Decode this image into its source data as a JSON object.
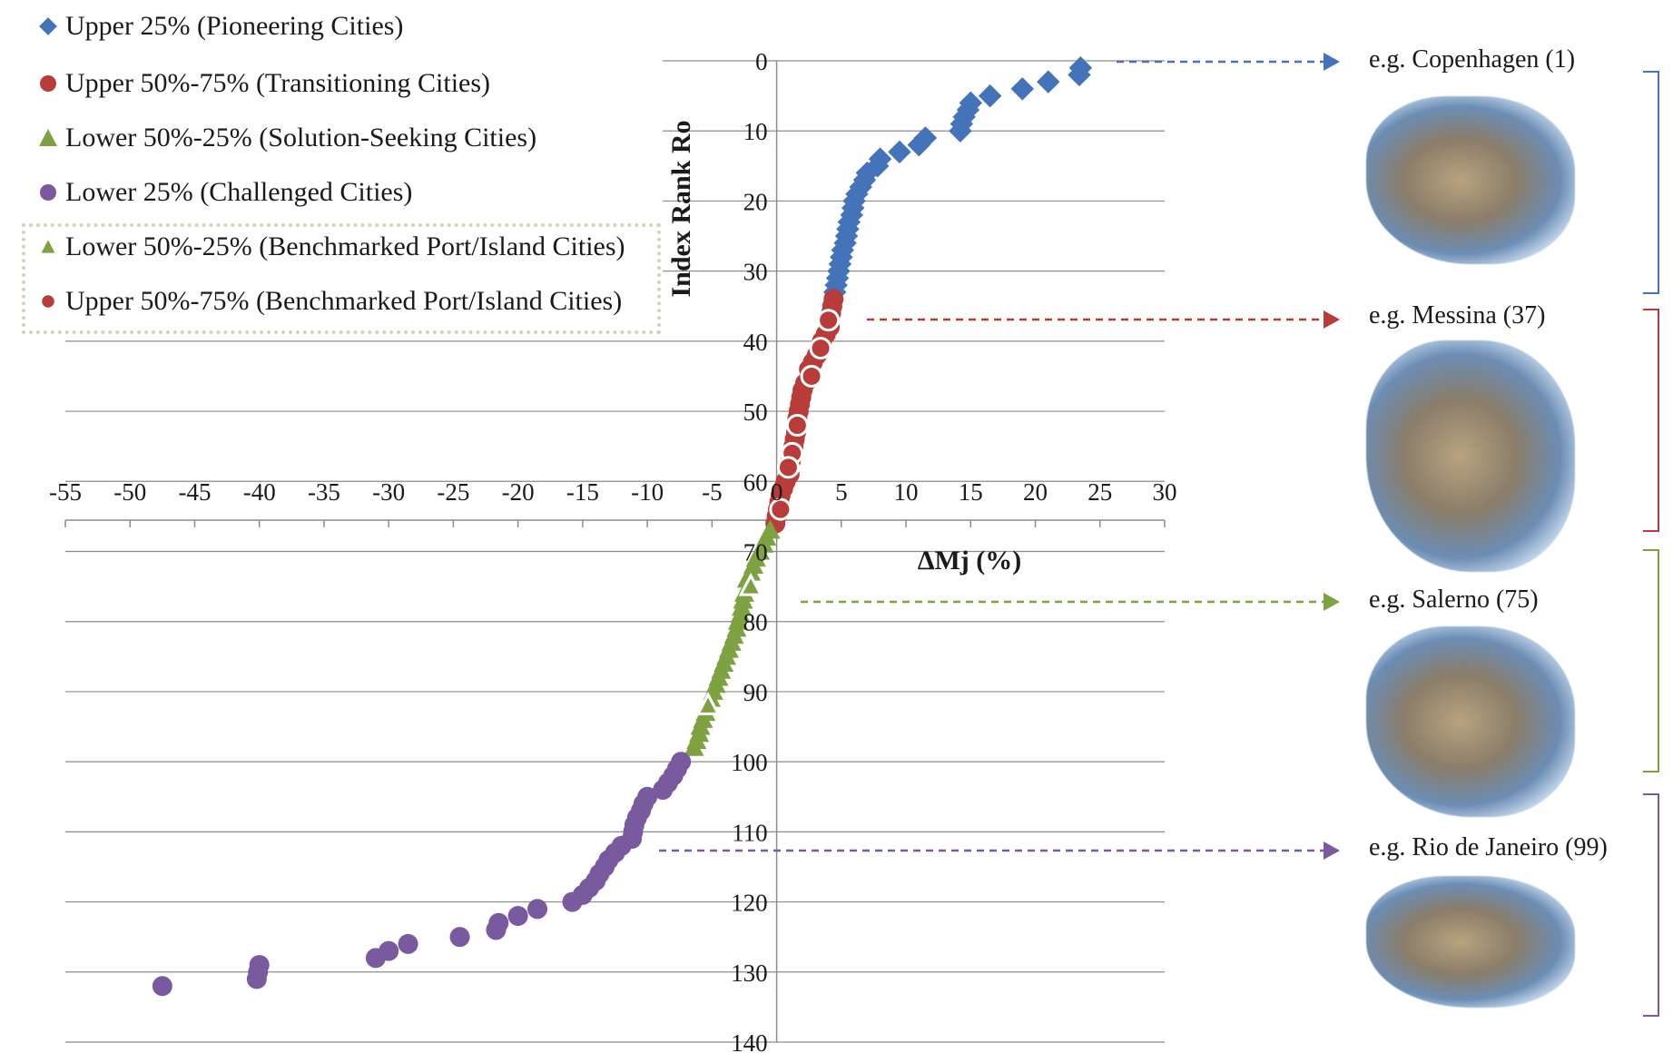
{
  "legend": {
    "upper25": "Upper 25% (Pioneering Cities)",
    "upper5075": "Upper 50%-75% (Transitioning Cities)",
    "lower5025": "Lower 50%-25% (Solution-Seeking Cities)",
    "lower25": "Lower 25% (Challenged Cities)",
    "bench_lower": "Lower 50%-25% (Benchmarked Port/Island Cities)",
    "bench_upper": "Upper 50%-75% (Benchmarked Port/Island Cities)"
  },
  "colors": {
    "blue": "#4473b9",
    "red": "#b73c3a",
    "green": "#7ea242",
    "purple": "#7a5a9e",
    "grid": "#8c8c8c"
  },
  "examples": [
    {
      "label": "e.g. Copenhagen (1)",
      "rank": 1,
      "color": "#4473b9",
      "icon": "copenhagen-photo-map"
    },
    {
      "label": "e.g. Messina (37)",
      "rank": 37,
      "color": "#b73c3a",
      "icon": "messina-photo-map"
    },
    {
      "label": "e.g. Salerno (75)",
      "rank": 75,
      "color": "#7ea242",
      "icon": "salerno-photo-map"
    },
    {
      "label": "e.g. Rio de Janeiro (99)",
      "rank": 99,
      "color": "#7a5a9e",
      "icon": "rio-photo-map"
    }
  ],
  "chart_data": {
    "type": "scatter",
    "title": "",
    "xlabel": "ΔMj (%)",
    "ylabel": "Index Rank Ro",
    "xlim": [
      -55,
      30
    ],
    "ylim": [
      140,
      0
    ],
    "y_reversed": true,
    "grid": "horizontal",
    "x_ticks": [
      "-55",
      "-50",
      "-45",
      "-40",
      "-35",
      "-30",
      "-25",
      "-20",
      "-15",
      "-10",
      "-5",
      "0",
      "5",
      "10",
      "15",
      "20",
      "25",
      "30"
    ],
    "y_ticks": [
      "0",
      "10",
      "20",
      "30",
      "40",
      "50",
      "60",
      "70",
      "80",
      "90",
      "100",
      "110",
      "120",
      "130",
      "140"
    ],
    "legend_position": "top-left",
    "series": [
      {
        "name": "Upper 25% (Pioneering Cities)",
        "marker": "diamond",
        "color": "#4473b9",
        "points": [
          [
            23.5,
            1
          ],
          [
            23.4,
            2
          ],
          [
            21.0,
            3
          ],
          [
            19.0,
            4
          ],
          [
            16.5,
            5
          ],
          [
            15.0,
            6
          ],
          [
            14.8,
            7
          ],
          [
            14.5,
            8
          ],
          [
            14.3,
            9
          ],
          [
            14.2,
            10
          ],
          [
            11.5,
            11
          ],
          [
            11.0,
            12
          ],
          [
            9.5,
            13
          ],
          [
            8.0,
            14
          ],
          [
            7.8,
            15
          ],
          [
            7.0,
            16
          ],
          [
            6.8,
            17
          ],
          [
            6.5,
            18
          ],
          [
            6.2,
            19
          ],
          [
            6.0,
            20
          ],
          [
            5.9,
            21
          ],
          [
            5.8,
            22
          ],
          [
            5.6,
            23
          ],
          [
            5.5,
            24
          ],
          [
            5.4,
            25
          ],
          [
            5.3,
            26
          ],
          [
            5.1,
            27
          ],
          [
            5.0,
            28
          ],
          [
            4.9,
            29
          ],
          [
            4.8,
            30
          ],
          [
            4.7,
            31
          ],
          [
            4.6,
            32
          ],
          [
            4.5,
            33
          ]
        ]
      },
      {
        "name": "Upper 50%-75% (Transitioning Cities)",
        "marker": "circle",
        "color": "#b73c3a",
        "points": [
          [
            4.4,
            34
          ],
          [
            4.3,
            35
          ],
          [
            4.2,
            36
          ],
          [
            4.1,
            38
          ],
          [
            3.8,
            39
          ],
          [
            3.5,
            40
          ],
          [
            3.1,
            42
          ],
          [
            2.8,
            43
          ],
          [
            2.5,
            44
          ],
          [
            2.2,
            46
          ],
          [
            2.0,
            47
          ],
          [
            1.9,
            48
          ],
          [
            1.8,
            49
          ],
          [
            1.7,
            50
          ],
          [
            1.6,
            51
          ],
          [
            1.5,
            53
          ],
          [
            1.4,
            54
          ],
          [
            1.3,
            55
          ],
          [
            1.1,
            57
          ],
          [
            1.0,
            59
          ],
          [
            0.7,
            60
          ],
          [
            0.5,
            61
          ],
          [
            0.3,
            62
          ],
          [
            0.2,
            63
          ],
          [
            0.1,
            64
          ],
          [
            0.0,
            65
          ],
          [
            -0.1,
            66
          ]
        ]
      },
      {
        "name": "Lower 50%-25% (Solution-Seeking Cities)",
        "marker": "triangle",
        "color": "#7ea242",
        "points": [
          [
            -0.5,
            67
          ],
          [
            -0.8,
            68
          ],
          [
            -1.0,
            69
          ],
          [
            -1.3,
            70
          ],
          [
            -1.6,
            71
          ],
          [
            -1.8,
            72
          ],
          [
            -2.0,
            73
          ],
          [
            -2.3,
            74
          ],
          [
            -2.5,
            76
          ],
          [
            -2.6,
            77
          ],
          [
            -2.7,
            78
          ],
          [
            -2.8,
            79
          ],
          [
            -3.0,
            80
          ],
          [
            -3.1,
            81
          ],
          [
            -3.3,
            82
          ],
          [
            -3.5,
            83
          ],
          [
            -3.7,
            84
          ],
          [
            -3.9,
            85
          ],
          [
            -4.1,
            86
          ],
          [
            -4.3,
            87
          ],
          [
            -4.5,
            88
          ],
          [
            -4.7,
            89
          ],
          [
            -4.9,
            90
          ],
          [
            -5.1,
            91
          ],
          [
            -5.5,
            93
          ],
          [
            -5.7,
            94
          ],
          [
            -5.9,
            95
          ],
          [
            -6.0,
            96
          ],
          [
            -6.2,
            97
          ],
          [
            -6.4,
            98
          ]
        ]
      },
      {
        "name": "Lower 25% (Challenged Cities)",
        "marker": "circle",
        "color": "#7a5a9e",
        "points": [
          [
            -7.4,
            100
          ],
          [
            -7.7,
            101
          ],
          [
            -8.0,
            102
          ],
          [
            -8.4,
            103
          ],
          [
            -8.8,
            104
          ],
          [
            -10.0,
            105
          ],
          [
            -10.3,
            106
          ],
          [
            -10.5,
            107
          ],
          [
            -10.8,
            108
          ],
          [
            -11.0,
            109
          ],
          [
            -11.1,
            110
          ],
          [
            -11.2,
            111
          ],
          [
            -12.0,
            112
          ],
          [
            -12.5,
            113
          ],
          [
            -13.0,
            114
          ],
          [
            -13.3,
            115
          ],
          [
            -13.7,
            116
          ],
          [
            -14.0,
            117
          ],
          [
            -14.5,
            118
          ],
          [
            -15.0,
            119
          ],
          [
            -15.8,
            120
          ],
          [
            -18.5,
            121
          ],
          [
            -20.0,
            122
          ],
          [
            -21.5,
            123
          ],
          [
            -21.7,
            124
          ],
          [
            -24.5,
            125
          ],
          [
            -28.5,
            126
          ],
          [
            -30.0,
            127
          ],
          [
            -31.0,
            128
          ],
          [
            -40.0,
            129
          ],
          [
            -40.1,
            130
          ],
          [
            -40.2,
            131
          ],
          [
            -47.5,
            132
          ]
        ]
      },
      {
        "name": "Lower 50%-25% (Benchmarked Port/Island Cities)",
        "marker": "triangle-hollow",
        "color": "#7ea242",
        "points": [
          [
            -2.0,
            75
          ],
          [
            -5.3,
            92
          ]
        ]
      },
      {
        "name": "Upper 50%-75% (Benchmarked Port/Island Cities)",
        "marker": "circle-hollow",
        "color": "#b73c3a",
        "points": [
          [
            4.0,
            37
          ],
          [
            3.4,
            41
          ],
          [
            2.7,
            45
          ],
          [
            1.6,
            52
          ],
          [
            1.2,
            56
          ],
          [
            0.9,
            58
          ],
          [
            0.3,
            64
          ]
        ]
      }
    ]
  }
}
